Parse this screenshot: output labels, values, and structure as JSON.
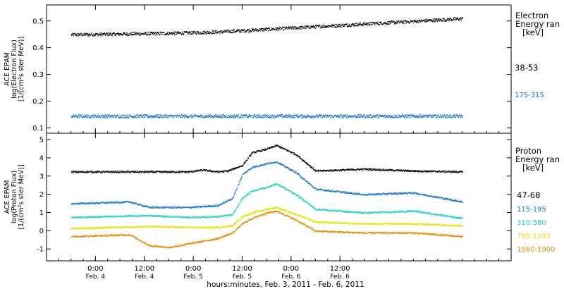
{
  "chart_data": [
    {
      "type": "scatter",
      "panel": "electron",
      "ylabel_lines": [
        "ACE EPAM",
        "log(Electron Flux)",
        "[1/(cm²s ster MeV)]"
      ],
      "ylim": [
        0.08,
        0.56
      ],
      "yticks": [
        0.1,
        0.2,
        0.3,
        0.4,
        0.5
      ],
      "legend_title_lines": [
        "Electron",
        "Energy ran",
        "[keV]"
      ],
      "series": [
        {
          "name": "38-53",
          "color": "#000000",
          "x": [
            0,
            1,
            1.5,
            2,
            2.5,
            3,
            3.5,
            4
          ],
          "y": [
            0.45,
            0.455,
            0.46,
            0.47,
            0.48,
            0.49,
            0.5,
            0.51
          ]
        },
        {
          "name": "175-315",
          "color": "#0a6ed1",
          "x": [
            0,
            4
          ],
          "y": [
            0.145,
            0.145
          ]
        }
      ]
    },
    {
      "type": "scatter",
      "panel": "proton",
      "ylabel_lines": [
        "ACE EPAM",
        "log(Proton Flux)",
        "[1/(cm²s ster MeV)]"
      ],
      "ylim": [
        -1.65,
        5.35
      ],
      "yticks": [
        -1,
        0,
        1,
        2,
        3,
        4,
        5
      ],
      "legend_title_lines": [
        "Proton",
        "Energy ran",
        "[keV]"
      ],
      "series": [
        {
          "name": "47-68",
          "color": "#000000",
          "x": [
            0,
            1.2,
            1.35,
            1.5,
            1.6,
            1.75,
            1.85,
            2.0,
            2.1,
            2.3,
            2.5,
            3.0,
            3.5,
            4
          ],
          "y": [
            3.25,
            3.25,
            3.35,
            3.25,
            3.3,
            3.6,
            4.3,
            4.5,
            4.7,
            4.2,
            3.3,
            3.4,
            3.3,
            3.25
          ]
        },
        {
          "name": "115-195",
          "color": "#1476d4",
          "x": [
            0,
            0.6,
            0.8,
            1.2,
            1.5,
            1.65,
            1.75,
            1.85,
            2.0,
            2.1,
            2.3,
            2.5,
            3.0,
            3.5,
            4
          ],
          "y": [
            1.5,
            1.6,
            1.3,
            1.3,
            1.4,
            1.8,
            3.1,
            3.5,
            3.7,
            3.8,
            3.2,
            2.3,
            2.0,
            2.1,
            1.6
          ]
        },
        {
          "name": "310-580",
          "color": "#21d0c8",
          "x": [
            0,
            0.8,
            1.2,
            1.5,
            1.65,
            1.75,
            1.85,
            2.0,
            2.1,
            2.3,
            2.5,
            3.0,
            3.5,
            4
          ],
          "y": [
            0.75,
            0.85,
            0.75,
            0.8,
            0.9,
            1.8,
            2.2,
            2.4,
            2.6,
            2.0,
            1.2,
            1.0,
            1.1,
            0.7
          ]
        },
        {
          "name": "795-1193",
          "color": "#dfe500",
          "x": [
            0,
            0.8,
            1.2,
            1.5,
            1.65,
            1.75,
            1.85,
            2.0,
            2.1,
            2.3,
            2.5,
            3.0,
            3.5,
            4
          ],
          "y": [
            0.15,
            0.25,
            0.2,
            0.2,
            0.3,
            0.8,
            1.0,
            1.2,
            1.3,
            0.9,
            0.5,
            0.4,
            0.4,
            0.3
          ]
        },
        {
          "name": "1060-1900",
          "color": "#e88a00",
          "x": [
            0,
            0.6,
            0.8,
            1.0,
            1.2,
            1.5,
            1.65,
            1.75,
            1.85,
            2.0,
            2.1,
            2.3,
            2.5,
            3.0,
            3.5,
            4
          ],
          "y": [
            -0.3,
            -0.2,
            -0.8,
            -0.9,
            -0.7,
            -0.4,
            -0.1,
            0.4,
            0.7,
            1.0,
            1.1,
            0.6,
            0.0,
            -0.1,
            -0.1,
            -0.3
          ]
        }
      ]
    }
  ],
  "x_axis": {
    "range": [
      -0.25,
      4.5
    ],
    "ticks": [
      {
        "x": 0.25,
        "time": "0:00",
        "day": "Feb. 4"
      },
      {
        "x": 0.75,
        "time": "12:00",
        "day": "Feb. 4"
      },
      {
        "x": 1.25,
        "time": "0:00",
        "day": "Feb. 5"
      },
      {
        "x": 1.75,
        "time": "12:00",
        "day": "Feb. 5"
      },
      {
        "x": 2.25,
        "time": "0:00",
        "day": "Feb. 6"
      },
      {
        "x": 2.75,
        "time": "12:00",
        "day": "Feb. 6"
      }
    ],
    "xlabel": "hours:minutes, Feb.  3, 2011 - Feb.  6, 2011"
  }
}
